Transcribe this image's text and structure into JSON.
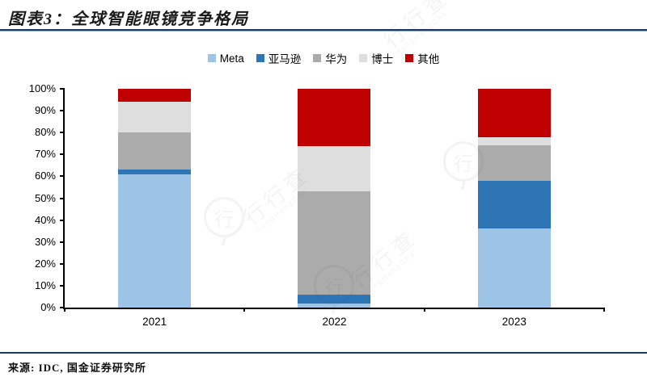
{
  "header": {
    "title": "图表3：全球智能眼镜竞争格局"
  },
  "footer": {
    "source": "来源: IDC, 国金证券研究所"
  },
  "watermark": {
    "text": "行行查",
    "subtext": "HangHangCha",
    "logo_char": "行"
  },
  "accent_colors": {
    "rule": "#1f3864",
    "axis": "#000000"
  },
  "chart_data": {
    "type": "bar",
    "stacked": true,
    "title": "全球智能眼镜竞争格局",
    "categories": [
      "2021",
      "2022",
      "2023"
    ],
    "series": [
      {
        "name": "Meta",
        "color": "#9dc3e6",
        "values": [
          61,
          2,
          36
        ]
      },
      {
        "name": "亚马逊",
        "color": "#2e75b6",
        "values": [
          2,
          4,
          22
        ]
      },
      {
        "name": "华为",
        "color": "#ababab",
        "values": [
          17,
          47,
          16
        ]
      },
      {
        "name": "博士",
        "color": "#dedede",
        "values": [
          14,
          21,
          4
        ]
      },
      {
        "name": "其他",
        "color": "#c00000",
        "values": [
          6,
          26,
          22
        ]
      }
    ],
    "unit": "%",
    "ylim": [
      0,
      100
    ],
    "yticks": [
      "0%",
      "10%",
      "20%",
      "30%",
      "40%",
      "50%",
      "60%",
      "70%",
      "80%",
      "90%",
      "100%"
    ],
    "xlabel": "",
    "ylabel": "",
    "legend_position": "top",
    "grid": false
  }
}
